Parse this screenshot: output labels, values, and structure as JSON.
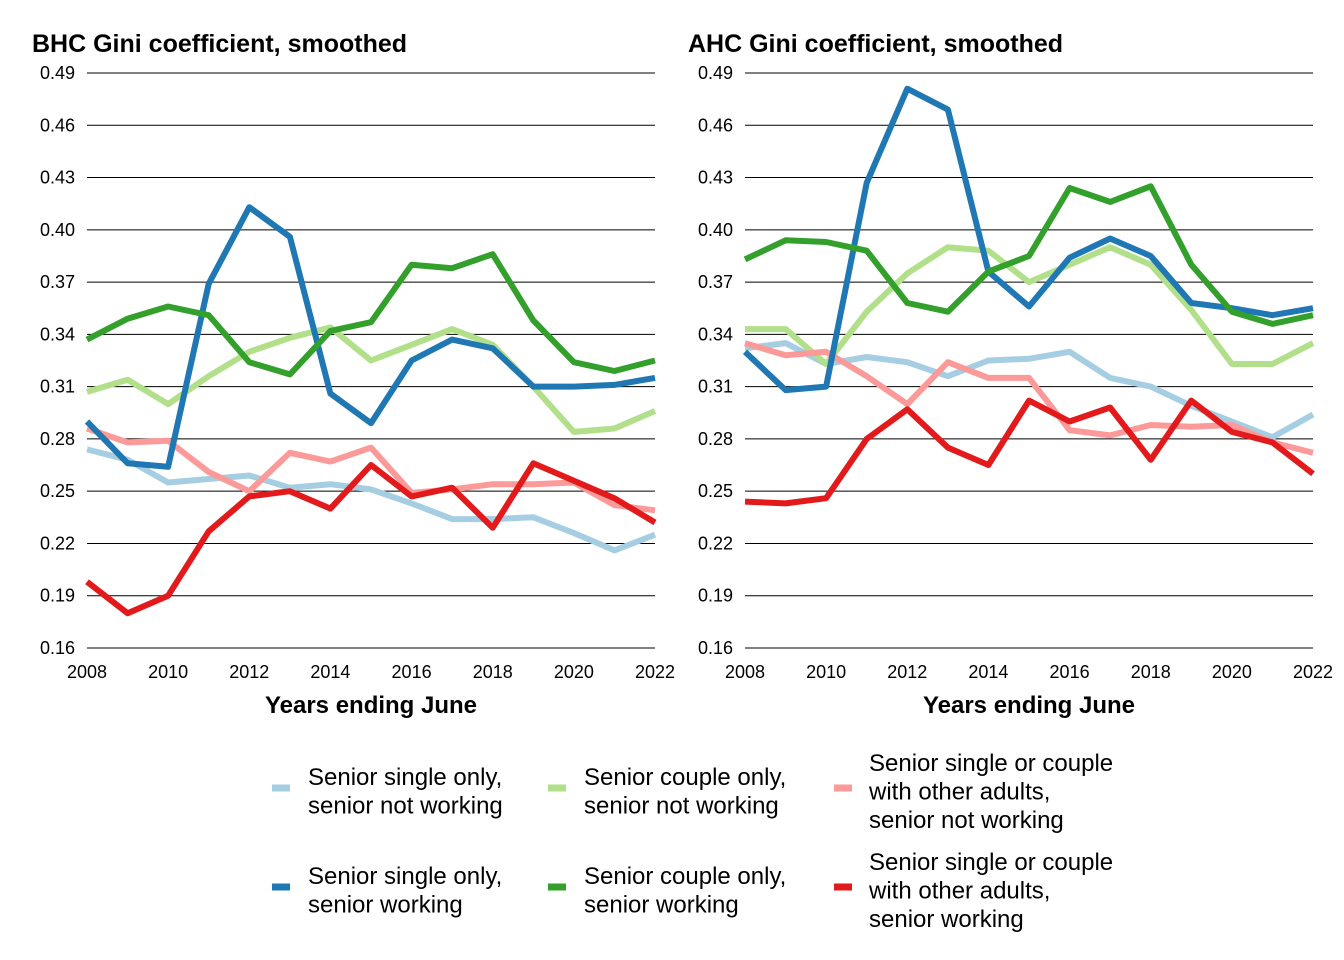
{
  "chart_data": [
    {
      "type": "line",
      "title": "BHC Gini coefficient, smoothed",
      "xlabel": "Years ending June",
      "ylabel": "",
      "xlim": [
        2008,
        2022
      ],
      "ylim": [
        0.16,
        0.49
      ],
      "x_ticks": [
        2008,
        2010,
        2012,
        2014,
        2016,
        2018,
        2020,
        2022
      ],
      "y_ticks": [
        0.16,
        0.19,
        0.22,
        0.25,
        0.28,
        0.31,
        0.34,
        0.37,
        0.4,
        0.43,
        0.46,
        0.49
      ],
      "grid": "horizontal",
      "x": [
        2008,
        2009,
        2010,
        2011,
        2012,
        2013,
        2014,
        2015,
        2016,
        2017,
        2018,
        2019,
        2020,
        2021,
        2022
      ],
      "series": [
        {
          "name": "Senior single only, senior not working",
          "color": "#a6cee3",
          "values": [
            0.274,
            0.268,
            0.255,
            0.257,
            0.259,
            0.252,
            0.254,
            0.251,
            0.243,
            0.234,
            0.234,
            0.235,
            0.226,
            0.216,
            0.225
          ]
        },
        {
          "name": "Senior couple only, senior not working",
          "color": "#b2df8a",
          "values": [
            0.307,
            0.314,
            0.3,
            0.316,
            0.33,
            0.338,
            0.344,
            0.325,
            0.334,
            0.343,
            0.334,
            0.31,
            0.284,
            0.286,
            0.296
          ]
        },
        {
          "name": "Senior single or couple with other adults, senior not working",
          "color": "#fb9a99",
          "values": [
            0.286,
            0.278,
            0.279,
            0.261,
            0.25,
            0.272,
            0.267,
            0.275,
            0.249,
            0.251,
            0.254,
            0.254,
            0.255,
            0.242,
            0.239
          ]
        },
        {
          "name": "Senior single only, senior working",
          "color": "#1f78b4",
          "values": [
            0.29,
            0.266,
            0.264,
            0.369,
            0.413,
            0.396,
            0.306,
            0.289,
            0.325,
            0.337,
            0.332,
            0.31,
            0.31,
            0.311,
            0.315
          ]
        },
        {
          "name": "Senior couple only, senior working",
          "color": "#33a02c",
          "values": [
            0.337,
            0.349,
            0.356,
            0.351,
            0.324,
            0.317,
            0.342,
            0.347,
            0.38,
            0.378,
            0.386,
            0.348,
            0.324,
            0.319,
            0.325
          ]
        },
        {
          "name": "Senior single or couple with other adults, senior working",
          "color": "#e31a1c",
          "values": [
            0.198,
            0.18,
            0.19,
            0.227,
            0.247,
            0.25,
            0.24,
            0.265,
            0.247,
            0.252,
            0.229,
            0.266,
            0.256,
            0.246,
            0.232
          ]
        }
      ]
    },
    {
      "type": "line",
      "title": "AHC Gini coefficient, smoothed",
      "xlabel": "Years ending June",
      "ylabel": "",
      "xlim": [
        2008,
        2022
      ],
      "ylim": [
        0.16,
        0.49
      ],
      "x_ticks": [
        2008,
        2010,
        2012,
        2014,
        2016,
        2018,
        2020,
        2022
      ],
      "y_ticks": [
        0.16,
        0.19,
        0.22,
        0.25,
        0.28,
        0.31,
        0.34,
        0.37,
        0.4,
        0.43,
        0.46,
        0.49
      ],
      "grid": "horizontal",
      "x": [
        2008,
        2009,
        2010,
        2011,
        2012,
        2013,
        2014,
        2015,
        2016,
        2017,
        2018,
        2019,
        2020,
        2021,
        2022
      ],
      "series": [
        {
          "name": "Senior single only, senior not working",
          "color": "#a6cee3",
          "values": [
            0.332,
            0.335,
            0.323,
            0.327,
            0.324,
            0.316,
            0.325,
            0.326,
            0.33,
            0.315,
            0.31,
            0.299,
            0.29,
            0.281,
            0.294
          ]
        },
        {
          "name": "Senior couple only, senior not working",
          "color": "#b2df8a",
          "values": [
            0.343,
            0.343,
            0.323,
            0.353,
            0.375,
            0.39,
            0.388,
            0.37,
            0.38,
            0.39,
            0.38,
            0.354,
            0.323,
            0.323,
            0.335
          ]
        },
        {
          "name": "Senior single or couple with other adults, senior not working",
          "color": "#fb9a99",
          "values": [
            0.335,
            0.328,
            0.33,
            0.316,
            0.3,
            0.324,
            0.315,
            0.315,
            0.285,
            0.282,
            0.288,
            0.287,
            0.288,
            0.278,
            0.272
          ]
        },
        {
          "name": "Senior single only, senior working",
          "color": "#1f78b4",
          "values": [
            0.33,
            0.308,
            0.31,
            0.427,
            0.481,
            0.469,
            0.376,
            0.356,
            0.384,
            0.395,
            0.385,
            0.358,
            0.355,
            0.351,
            0.355
          ]
        },
        {
          "name": "Senior couple only, senior working",
          "color": "#33a02c",
          "values": [
            0.383,
            0.394,
            0.393,
            0.388,
            0.358,
            0.353,
            0.376,
            0.385,
            0.424,
            0.416,
            0.425,
            0.38,
            0.353,
            0.346,
            0.351
          ]
        },
        {
          "name": "Senior single or couple with other adults, senior working",
          "color": "#e31a1c",
          "values": [
            0.244,
            0.243,
            0.246,
            0.28,
            0.297,
            0.275,
            0.265,
            0.302,
            0.29,
            0.298,
            0.268,
            0.302,
            0.284,
            0.278,
            0.26
          ]
        }
      ]
    }
  ],
  "legend": {
    "items": [
      {
        "lines": [
          "Senior single only,",
          "senior not working"
        ],
        "color": "#a6cee3"
      },
      {
        "lines": [
          "Senior couple only,",
          "senior not working"
        ],
        "color": "#b2df8a"
      },
      {
        "lines": [
          "Senior single or couple",
          "with other adults,",
          "senior not working"
        ],
        "color": "#fb9a99"
      },
      {
        "lines": [
          "Senior single only,",
          "senior working"
        ],
        "color": "#1f78b4"
      },
      {
        "lines": [
          "Senior couple only,",
          "senior working"
        ],
        "color": "#33a02c"
      },
      {
        "lines": [
          "Senior single or couple",
          "with other adults,",
          "senior working"
        ],
        "color": "#e31a1c"
      }
    ]
  }
}
